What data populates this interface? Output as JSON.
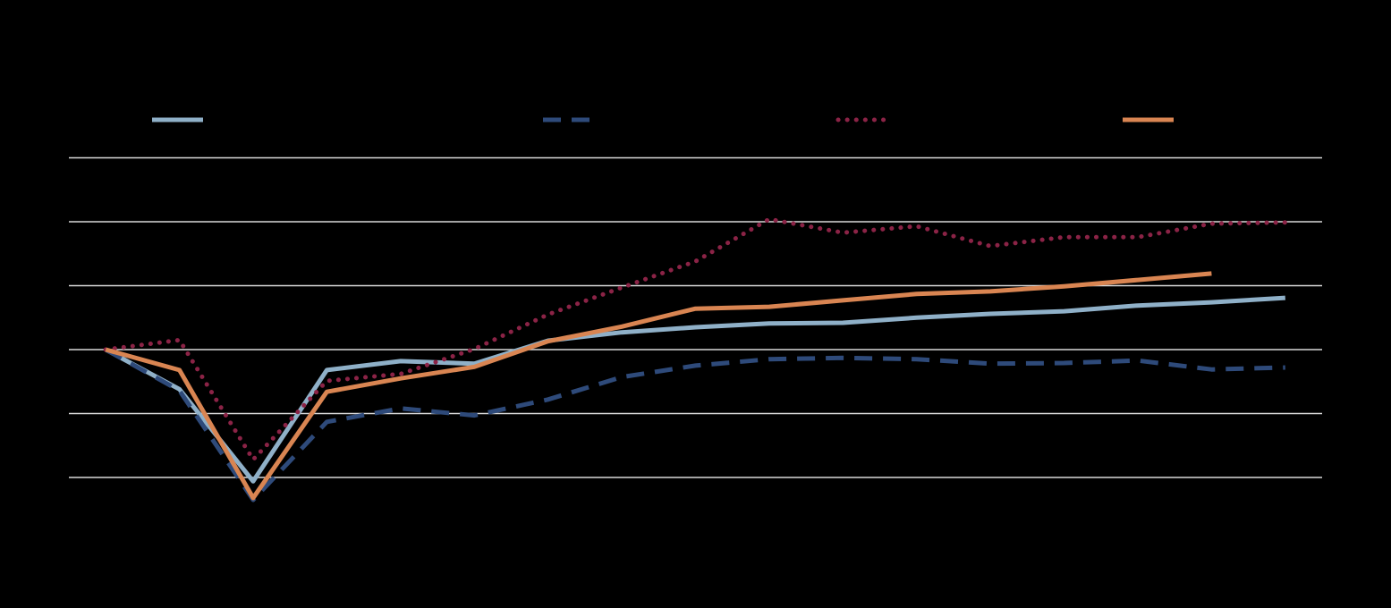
{
  "chart_data": {
    "type": "line",
    "categories": [
      null,
      null,
      null,
      null,
      null,
      null,
      null,
      null,
      null,
      null,
      null,
      null,
      null,
      null,
      null,
      null,
      null
    ],
    "series": [
      {
        "color": "#8fb0c8",
        "style": "solid",
        "values": [
          100,
          93.8,
          79.4,
          96.8,
          98.2,
          97.8,
          101.4,
          102.7,
          103.5,
          104.1,
          104.2,
          105.0,
          105.6,
          106.0,
          106.9,
          107.4,
          108.1
        ]
      },
      {
        "color": "#2e4a7a",
        "style": "dashed",
        "values": [
          100,
          93.6,
          76.5,
          88.7,
          90.8,
          89.7,
          92.2,
          95.7,
          97.5,
          98.5,
          98.7,
          98.5,
          97.8,
          97.9,
          98.3,
          96.9,
          97.2
        ]
      },
      {
        "color": "#8b2346",
        "style": "dotted",
        "values": [
          100,
          101.5,
          82.8,
          95.1,
          96.2,
          100.1,
          105.5,
          109.7,
          113.8,
          120.4,
          118.3,
          119.3,
          116.2,
          117.6,
          117.6,
          119.7,
          119.9
        ]
      },
      {
        "color": "#d98552",
        "style": "solid",
        "values": [
          100,
          96.8,
          76.8,
          93.4,
          95.5,
          97.3,
          101.3,
          103.6,
          106.4,
          106.7,
          107.7,
          108.7,
          109.1,
          109.9,
          110.9,
          111.9,
          null
        ]
      }
    ],
    "ylim": [
      75,
      135
    ],
    "yticks": [
      80,
      90,
      100,
      110,
      120,
      130
    ],
    "grid": true,
    "legend": "top"
  }
}
